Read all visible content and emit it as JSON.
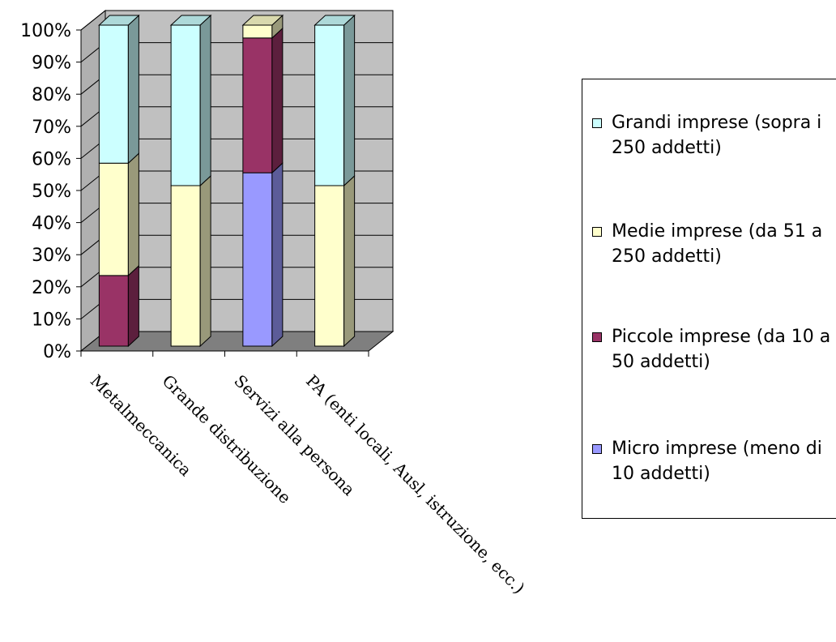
{
  "chart_data": {
    "type": "bar",
    "stacked": true,
    "percent": true,
    "view": "3d",
    "categories": [
      "Metalmeccanica",
      "Grande distribuzione",
      "Servizi alla persona",
      "PA (enti locali, Ausl, istruzione, ecc.)"
    ],
    "series": [
      {
        "name": "Micro imprese (meno di 10 addetti)",
        "color": "#9999ff",
        "values": [
          0,
          0,
          54,
          0
        ]
      },
      {
        "name": "Piccole imprese (da 10 a 50 addetti)",
        "color": "#993366",
        "values": [
          22,
          0,
          42,
          0
        ]
      },
      {
        "name": "Medie imprese (da 51 a 250 addetti)",
        "color": "#ffffcc",
        "values": [
          35,
          50,
          4,
          50
        ]
      },
      {
        "name": "Grandi imprese (sopra i 250 addetti)",
        "color": "#ccffff",
        "values": [
          43,
          50,
          0,
          50
        ]
      }
    ],
    "ylim": [
      0,
      100
    ],
    "yticks": [
      "0%",
      "10%",
      "20%",
      "30%",
      "40%",
      "50%",
      "60%",
      "70%",
      "80%",
      "90%",
      "100%"
    ],
    "grid": true,
    "legend_position": "right",
    "legend": [
      "Grandi imprese (sopra i 250 addetti)",
      "Medie imprese (da 51 a 250 addetti)",
      "Piccole imprese (da 10 a 50 addetti)",
      "Micro imprese (meno di 10 addetti)"
    ]
  }
}
